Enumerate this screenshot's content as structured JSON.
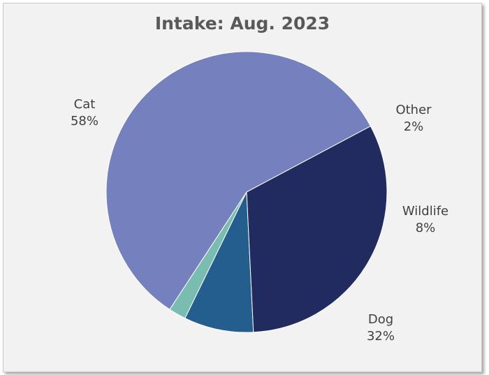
{
  "chart_data": {
    "type": "pie",
    "title": "Intake: Aug. 2023",
    "slices": [
      {
        "label": "Cat",
        "value": 58,
        "value_label": "58%",
        "color": "#7580bf"
      },
      {
        "label": "Other",
        "value": 2,
        "value_label": "2%",
        "color": "#79bdb0"
      },
      {
        "label": "Wildlife",
        "value": 8,
        "value_label": "8%",
        "color": "#235e8e"
      },
      {
        "label": "Dog",
        "value": 32,
        "value_label": "32%",
        "color": "#212b60"
      }
    ],
    "legend": "none",
    "background_color": "#f2f2f2"
  }
}
